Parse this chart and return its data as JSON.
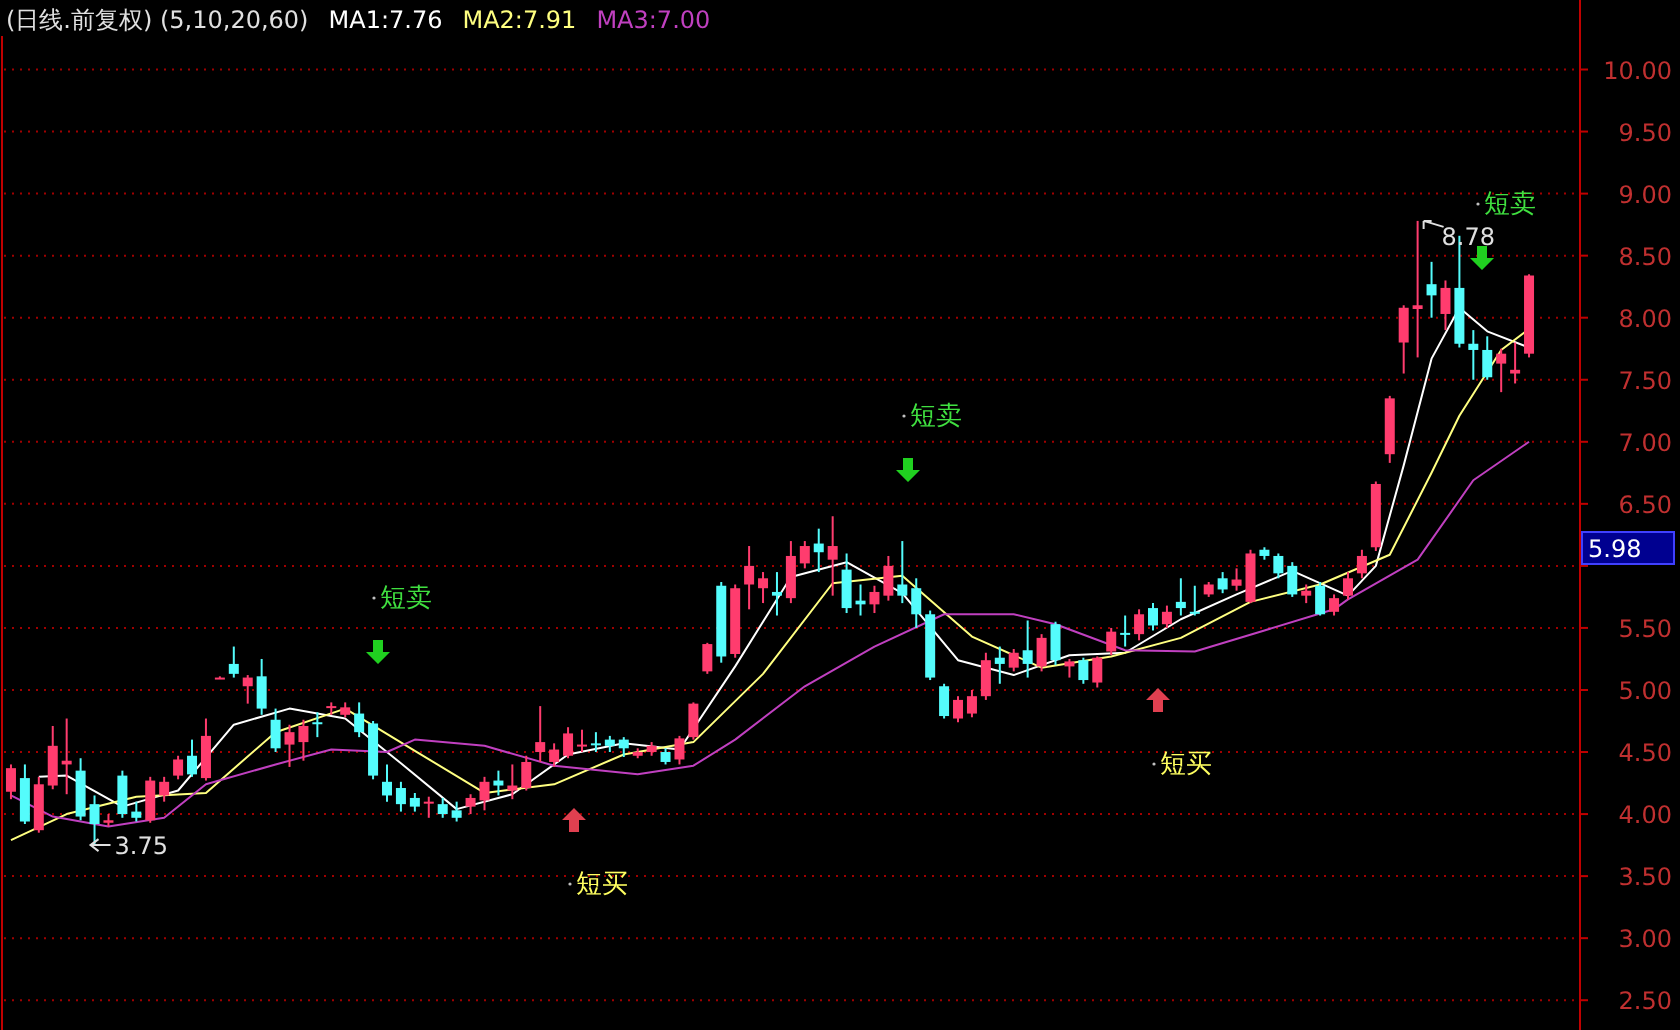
{
  "chart_data": {
    "type": "candlestick",
    "title": "(日线.前复权) (5,10,20,60)",
    "categories": [
      null,
      null,
      null,
      null,
      null,
      null,
      null,
      null,
      null,
      null,
      null,
      null,
      null,
      null,
      null,
      null,
      null,
      null,
      null,
      null,
      null,
      null,
      null,
      null,
      null,
      null,
      null,
      null,
      null,
      null,
      null,
      null,
      null,
      null,
      null,
      null,
      null,
      null,
      null,
      null,
      null,
      null,
      null,
      null,
      null,
      null,
      null,
      null,
      null,
      null,
      null,
      null,
      null,
      null,
      null,
      null,
      null,
      null,
      null,
      null,
      null,
      null,
      null,
      null,
      null,
      null,
      null,
      null,
      null,
      null,
      null,
      null,
      null,
      null,
      null,
      null,
      null,
      null,
      null,
      null,
      null,
      null,
      null,
      null,
      null,
      null,
      null,
      null,
      null,
      null,
      null,
      null,
      null,
      null,
      null,
      null,
      null,
      null,
      null,
      null,
      null,
      null,
      null,
      null,
      null,
      null,
      null,
      null,
      null,
      null
    ],
    "ohlc": [
      [
        4.18,
        4.4,
        4.12,
        4.37
      ],
      [
        4.29,
        4.4,
        3.92,
        3.94
      ],
      [
        3.87,
        4.3,
        3.85,
        4.24
      ],
      [
        4.23,
        4.71,
        4.2,
        4.55
      ],
      [
        4.4,
        4.77,
        4.16,
        4.43
      ],
      [
        4.35,
        4.45,
        3.95,
        3.98
      ],
      [
        4.08,
        4.15,
        3.75,
        3.92
      ],
      [
        3.93,
        4.0,
        3.9,
        3.95
      ],
      [
        4.31,
        4.35,
        3.97,
        4.0
      ],
      [
        4.02,
        4.1,
        3.94,
        3.97
      ],
      [
        3.95,
        4.3,
        3.93,
        4.27
      ],
      [
        4.15,
        4.3,
        4.1,
        4.26
      ],
      [
        4.31,
        4.47,
        4.28,
        4.44
      ],
      [
        4.47,
        4.6,
        4.3,
        4.32
      ],
      [
        4.29,
        4.77,
        4.27,
        4.63
      ],
      [
        5.1,
        5.11,
        5.09,
        5.1
      ],
      [
        5.21,
        5.35,
        5.1,
        5.13
      ],
      [
        5.03,
        5.12,
        4.89,
        5.1
      ],
      [
        5.11,
        5.25,
        4.8,
        4.85
      ],
      [
        4.76,
        4.85,
        4.5,
        4.53
      ],
      [
        4.56,
        4.72,
        4.38,
        4.66
      ],
      [
        4.58,
        4.76,
        4.43,
        4.71
      ],
      [
        4.74,
        4.82,
        4.62,
        4.73
      ],
      [
        4.86,
        4.9,
        4.8,
        4.87
      ],
      [
        4.8,
        4.9,
        4.78,
        4.86
      ],
      [
        4.81,
        4.9,
        4.62,
        4.66
      ],
      [
        4.73,
        4.75,
        4.28,
        4.31
      ],
      [
        4.26,
        4.4,
        4.1,
        4.15
      ],
      [
        4.21,
        4.26,
        4.02,
        4.08
      ],
      [
        4.13,
        4.17,
        4.02,
        4.06
      ],
      [
        4.09,
        4.14,
        3.97,
        4.1
      ],
      [
        4.08,
        4.13,
        3.97,
        4.0
      ],
      [
        4.03,
        4.1,
        3.94,
        3.97
      ],
      [
        4.06,
        4.16,
        4.0,
        4.13
      ],
      [
        4.11,
        4.3,
        4.03,
        4.26
      ],
      [
        4.27,
        4.35,
        4.15,
        4.23
      ],
      [
        4.19,
        4.4,
        4.12,
        4.23
      ],
      [
        4.21,
        4.47,
        4.19,
        4.42
      ],
      [
        4.5,
        4.87,
        4.42,
        4.58
      ],
      [
        4.42,
        4.57,
        4.38,
        4.52
      ],
      [
        4.47,
        4.7,
        4.45,
        4.65
      ],
      [
        4.55,
        4.68,
        4.5,
        4.56
      ],
      [
        4.57,
        4.66,
        4.5,
        4.56
      ],
      [
        4.6,
        4.63,
        4.5,
        4.55
      ],
      [
        4.6,
        4.62,
        4.46,
        4.53
      ],
      [
        4.47,
        4.53,
        4.45,
        4.5
      ],
      [
        4.5,
        4.58,
        4.47,
        4.55
      ],
      [
        4.5,
        4.53,
        4.4,
        4.42
      ],
      [
        4.44,
        4.63,
        4.4,
        4.61
      ],
      [
        4.62,
        4.9,
        4.6,
        4.89
      ],
      [
        5.15,
        5.38,
        5.13,
        5.37
      ],
      [
        5.84,
        5.87,
        5.22,
        5.27
      ],
      [
        5.29,
        5.85,
        5.26,
        5.82
      ],
      [
        5.85,
        6.16,
        5.65,
        6.0
      ],
      [
        5.82,
        5.95,
        5.7,
        5.9
      ],
      [
        5.79,
        5.95,
        5.6,
        5.76
      ],
      [
        5.74,
        6.2,
        5.7,
        6.08
      ],
      [
        6.02,
        6.2,
        5.98,
        6.16
      ],
      [
        6.18,
        6.3,
        5.95,
        6.11
      ],
      [
        6.05,
        6.4,
        5.76,
        6.16
      ],
      [
        5.97,
        6.1,
        5.62,
        5.66
      ],
      [
        5.72,
        5.85,
        5.6,
        5.69
      ],
      [
        5.69,
        5.84,
        5.62,
        5.79
      ],
      [
        5.76,
        6.08,
        5.72,
        6.0
      ],
      [
        5.85,
        6.2,
        5.7,
        5.76
      ],
      [
        5.82,
        5.9,
        5.5,
        5.61
      ],
      [
        5.61,
        5.64,
        5.08,
        5.1
      ],
      [
        5.03,
        5.05,
        4.77,
        4.79
      ],
      [
        4.77,
        4.95,
        4.74,
        4.92
      ],
      [
        4.81,
        5.0,
        4.78,
        4.95
      ],
      [
        4.95,
        5.3,
        4.92,
        5.24
      ],
      [
        5.26,
        5.35,
        5.05,
        5.21
      ],
      [
        5.18,
        5.33,
        5.15,
        5.3
      ],
      [
        5.32,
        5.56,
        5.1,
        5.21
      ],
      [
        5.19,
        5.45,
        5.15,
        5.42
      ],
      [
        5.53,
        5.55,
        5.2,
        5.24
      ],
      [
        5.19,
        5.25,
        5.1,
        5.23
      ],
      [
        5.24,
        5.26,
        5.05,
        5.08
      ],
      [
        5.06,
        5.27,
        5.02,
        5.26
      ],
      [
        5.31,
        5.5,
        5.28,
        5.47
      ],
      [
        5.46,
        5.6,
        5.35,
        5.45
      ],
      [
        5.45,
        5.65,
        5.4,
        5.61
      ],
      [
        5.66,
        5.7,
        5.48,
        5.52
      ],
      [
        5.53,
        5.68,
        5.5,
        5.63
      ],
      [
        5.71,
        5.9,
        5.6,
        5.66
      ],
      [
        5.63,
        5.84,
        5.6,
        5.62
      ],
      [
        5.77,
        5.87,
        5.75,
        5.85
      ],
      [
        5.9,
        5.95,
        5.78,
        5.81
      ],
      [
        5.84,
        5.98,
        5.8,
        5.89
      ],
      [
        5.71,
        6.13,
        5.7,
        6.1
      ],
      [
        6.13,
        6.15,
        6.05,
        6.08
      ],
      [
        6.08,
        6.1,
        5.9,
        5.94
      ],
      [
        6.0,
        6.03,
        5.75,
        5.77
      ],
      [
        5.76,
        5.85,
        5.7,
        5.8
      ],
      [
        5.84,
        5.87,
        5.6,
        5.61
      ],
      [
        5.63,
        5.77,
        5.6,
        5.74
      ],
      [
        5.76,
        5.95,
        5.73,
        5.9
      ],
      [
        5.94,
        6.13,
        5.9,
        6.08
      ],
      [
        6.15,
        6.68,
        6.12,
        6.66
      ],
      [
        6.9,
        7.37,
        6.83,
        7.35
      ],
      [
        7.8,
        8.1,
        7.55,
        8.08
      ],
      [
        8.07,
        8.78,
        7.68,
        8.1
      ],
      [
        8.27,
        8.45,
        8.0,
        8.18
      ],
      [
        8.03,
        8.3,
        7.9,
        8.24
      ],
      [
        8.24,
        8.66,
        7.76,
        7.79
      ],
      [
        7.79,
        7.9,
        7.5,
        7.74
      ],
      [
        7.74,
        7.85,
        7.5,
        7.52
      ],
      [
        7.63,
        7.75,
        7.4,
        7.71
      ],
      [
        7.55,
        7.8,
        7.47,
        7.58
      ],
      [
        7.71,
        8.35,
        7.68,
        8.34
      ]
    ],
    "series": [
      {
        "name": "MA1:7.76",
        "type": "line",
        "color": "#ffffff",
        "values": [
          null,
          null,
          4.3,
          null,
          4.31,
          null,
          null,
          null,
          4.06,
          null,
          null,
          null,
          4.19,
          null,
          null,
          null,
          4.72,
          null,
          null,
          null,
          4.85,
          null,
          null,
          null,
          4.77,
          null,
          null,
          null,
          4.41,
          null,
          null,
          null,
          4.04,
          null,
          null,
          null,
          4.16,
          null,
          null,
          null,
          4.48,
          null,
          null,
          null,
          4.57,
          null,
          null,
          null,
          4.52,
          null,
          null,
          null,
          5.19,
          null,
          null,
          null,
          5.91,
          null,
          null,
          null,
          6.03,
          null,
          null,
          null,
          5.78,
          null,
          null,
          null,
          5.24,
          null,
          null,
          null,
          5.12,
          null,
          null,
          null,
          5.28,
          null,
          null,
          null,
          5.3,
          null,
          null,
          null,
          5.57,
          null,
          null,
          null,
          5.77,
          null,
          null,
          null,
          5.96,
          null,
          null,
          null,
          5.76,
          null,
          6.0,
          null,
          6.81,
          null,
          7.67,
          null,
          8.08,
          null,
          7.89,
          null,
          null,
          7.76
        ]
      },
      {
        "name": "MA2:7.91",
        "type": "line",
        "color": "#ffff80",
        "values": [
          3.79,
          null,
          null,
          null,
          4.0,
          null,
          null,
          null,
          null,
          4.14,
          null,
          null,
          null,
          null,
          4.17,
          null,
          null,
          null,
          null,
          4.66,
          null,
          null,
          null,
          null,
          4.85,
          null,
          null,
          null,
          null,
          4.51,
          null,
          null,
          null,
          null,
          4.17,
          null,
          null,
          null,
          null,
          4.24,
          null,
          null,
          null,
          null,
          4.48,
          null,
          null,
          null,
          null,
          4.58,
          null,
          null,
          null,
          null,
          5.13,
          null,
          null,
          null,
          null,
          5.86,
          null,
          null,
          null,
          null,
          5.92,
          null,
          null,
          null,
          null,
          5.43,
          null,
          null,
          null,
          null,
          5.18,
          null,
          null,
          null,
          null,
          5.27,
          null,
          null,
          null,
          null,
          5.42,
          null,
          null,
          null,
          null,
          5.71,
          null,
          null,
          null,
          null,
          5.85,
          null,
          null,
          null,
          null,
          6.09,
          null,
          null,
          6.75,
          null,
          7.21,
          null,
          null,
          7.74,
          null,
          7.91
        ]
      },
      {
        "name": "MA3:7.00",
        "type": "line",
        "color": "#c040c0",
        "values": [
          4.15,
          null,
          null,
          3.98,
          null,
          null,
          null,
          3.9,
          null,
          null,
          null,
          3.97,
          null,
          null,
          4.24,
          null,
          null,
          null,
          null,
          4.4,
          null,
          null,
          null,
          4.52,
          null,
          null,
          null,
          4.5,
          null,
          4.6,
          null,
          null,
          null,
          null,
          4.55,
          null,
          null,
          null,
          null,
          4.39,
          null,
          null,
          null,
          null,
          null,
          4.32,
          null,
          null,
          null,
          4.39,
          null,
          null,
          4.6,
          null,
          null,
          null,
          null,
          5.03,
          null,
          null,
          null,
          null,
          5.35,
          null,
          null,
          null,
          null,
          5.61,
          null,
          null,
          null,
          null,
          5.61,
          null,
          null,
          5.53,
          null,
          null,
          null,
          null,
          5.32,
          null,
          null,
          null,
          null,
          5.31,
          null,
          null,
          null,
          null,
          5.48,
          null,
          null,
          null,
          null,
          5.65,
          5.73,
          null,
          null,
          null,
          null,
          6.05,
          null,
          null,
          null,
          6.69,
          null,
          null,
          null,
          7.0
        ]
      }
    ],
    "colors": [
      "#ff3c6e",
      "#54fcfc",
      "#ff3c6e",
      "#ff3c6e",
      "#ff3c6e",
      "#54fcfc",
      "#54fcfc",
      "#ff3c6e",
      "#54fcfc",
      "#54fcfc",
      "#ff3c6e",
      "#ff3c6e",
      "#ff3c6e",
      "#54fcfc",
      "#ff3c6e",
      "#ff3c6e",
      "#54fcfc",
      "#ff3c6e",
      "#54fcfc",
      "#54fcfc",
      "#ff3c6e",
      "#ff3c6e",
      "#54fcfc",
      "#ff3c6e",
      "#ff3c6e",
      "#54fcfc",
      "#54fcfc",
      "#54fcfc",
      "#54fcfc",
      "#54fcfc",
      "#ff3c6e",
      "#54fcfc",
      "#54fcfc",
      "#ff3c6e",
      "#ff3c6e",
      "#54fcfc",
      "#ff3c6e",
      "#ff3c6e",
      "#ff3c6e",
      "#ff3c6e",
      "#ff3c6e",
      "#ff3c6e",
      "#54fcfc",
      "#54fcfc",
      "#54fcfc",
      "#ff3c6e",
      "#ff3c6e",
      "#54fcfc",
      "#ff3c6e",
      "#ff3c6e",
      "#ff3c6e",
      "#54fcfc",
      "#ff3c6e",
      "#ff3c6e",
      "#ff3c6e",
      "#54fcfc",
      "#ff3c6e",
      "#ff3c6e",
      "#54fcfc",
      "#ff3c6e",
      "#54fcfc",
      "#54fcfc",
      "#ff3c6e",
      "#ff3c6e",
      "#54fcfc",
      "#54fcfc",
      "#54fcfc",
      "#54fcfc",
      "#ff3c6e",
      "#ff3c6e",
      "#ff3c6e",
      "#54fcfc",
      "#ff3c6e",
      "#54fcfc",
      "#ff3c6e",
      "#54fcfc",
      "#ff3c6e",
      "#54fcfc",
      "#ff3c6e",
      "#ff3c6e",
      "#54fcfc",
      "#ff3c6e",
      "#54fcfc",
      "#ff3c6e",
      "#54fcfc",
      "#54fcfc",
      "#ff3c6e",
      "#54fcfc",
      "#ff3c6e",
      "#ff3c6e",
      "#54fcfc",
      "#54fcfc",
      "#54fcfc",
      "#ff3c6e",
      "#54fcfc",
      "#ff3c6e",
      "#ff3c6e",
      "#ff3c6e",
      "#ff3c6e",
      "#ff3c6e",
      "#ff3c6e",
      "#ff3c6e",
      "#54fcfc",
      "#ff3c6e",
      "#54fcfc",
      "#54fcfc",
      "#54fcfc",
      "#ff3c6e",
      "#ff3c6e",
      "#ff3c6e"
    ],
    "ylim": [
      2.26,
      10.27
    ],
    "yticks": [
      {
        "value": 2.5,
        "label": "2.50"
      },
      {
        "value": 3,
        "label": "3.00"
      },
      {
        "value": 3.5,
        "label": "3.50"
      },
      {
        "value": 4,
        "label": "4.00"
      },
      {
        "value": 4.5,
        "label": "4.50"
      },
      {
        "value": 5,
        "label": "5.00"
      },
      {
        "value": 5.5,
        "label": "5.50"
      },
      {
        "value": 6,
        "label": null
      },
      {
        "value": 6.5,
        "label": "6.50"
      },
      {
        "value": 7,
        "label": "7.00"
      },
      {
        "value": 7.5,
        "label": "7.50"
      },
      {
        "value": 8,
        "label": "8.00"
      },
      {
        "value": 8.5,
        "label": "8.50"
      },
      {
        "value": 9,
        "label": "9.00"
      },
      {
        "value": 9.5,
        "label": "9.50"
      },
      {
        "value": 10,
        "label": "10.00"
      }
    ],
    "grid": "y",
    "legend": "top left",
    "tick_labels": "y",
    "annotations": [
      "短卖",
      "短买",
      "短卖",
      "短买",
      "短卖",
      "3.75",
      "8.78",
      "5.98"
    ]
  }
}
